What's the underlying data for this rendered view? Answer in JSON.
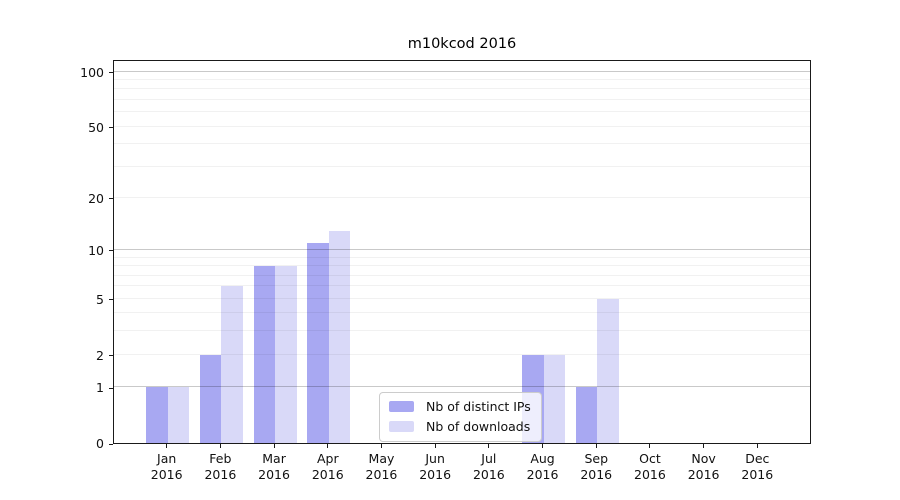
{
  "chart_data": {
    "type": "bar",
    "title": "m10kcod 2016",
    "categories": [
      "Jan 2016",
      "Feb 2016",
      "Mar 2016",
      "Apr 2016",
      "May 2016",
      "Jun 2016",
      "Jul 2016",
      "Aug 2016",
      "Sep 2016",
      "Oct 2016",
      "Nov 2016",
      "Dec 2016"
    ],
    "months": [
      "Jan",
      "Feb",
      "Mar",
      "Apr",
      "May",
      "Jun",
      "Jul",
      "Aug",
      "Sep",
      "Oct",
      "Nov",
      "Dec"
    ],
    "year": "2016",
    "series": [
      {
        "name": "Nb of distinct IPs",
        "color": "#a8a8f2",
        "values": [
          1,
          2,
          8,
          11,
          0,
          0,
          0,
          2,
          1,
          0,
          0,
          0
        ]
      },
      {
        "name": "Nb of downloads",
        "color": "#d9d9f8",
        "values": [
          1,
          6,
          8,
          13,
          0,
          0,
          0,
          2,
          5,
          0,
          0,
          0
        ]
      }
    ],
    "xlabel": "",
    "ylabel": "",
    "yscale": "log1p",
    "ylim": [
      0,
      117
    ],
    "yticks": [
      0,
      1,
      2,
      5,
      10,
      20,
      50,
      100
    ],
    "major_gridlines": [
      1,
      10,
      100
    ],
    "minor_gridlines": [
      2,
      3,
      4,
      5,
      6,
      7,
      8,
      9,
      20,
      30,
      40,
      50,
      60,
      70,
      80,
      90
    ],
    "grid": "on",
    "legend_position": "lower-center-inside",
    "colors": {
      "major_grid": "#c9c9c9",
      "minor_grid": "#f0f0f0",
      "axis": "#1a1a1a",
      "background": "#ffffff"
    }
  }
}
